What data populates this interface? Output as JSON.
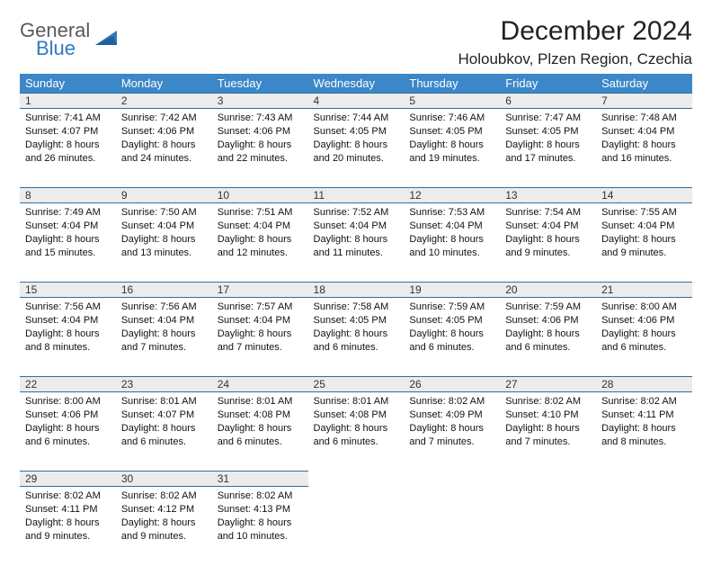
{
  "logo": {
    "text1": "General",
    "text2": "Blue",
    "brand_color": "#2f7bbf",
    "gray": "#5a5a5a"
  },
  "header": {
    "title": "December 2024",
    "location": "Holoubkov, Plzen Region, Czechia"
  },
  "colors": {
    "header_bg": "#3b87c8",
    "daynum_bg": "#ececec",
    "border": "#2f6ea8"
  },
  "weekdays": [
    "Sunday",
    "Monday",
    "Tuesday",
    "Wednesday",
    "Thursday",
    "Friday",
    "Saturday"
  ],
  "weeks": [
    [
      {
        "n": "1",
        "sr": "7:41 AM",
        "ss": "4:07 PM",
        "dl": "8 hours and 26 minutes."
      },
      {
        "n": "2",
        "sr": "7:42 AM",
        "ss": "4:06 PM",
        "dl": "8 hours and 24 minutes."
      },
      {
        "n": "3",
        "sr": "7:43 AM",
        "ss": "4:06 PM",
        "dl": "8 hours and 22 minutes."
      },
      {
        "n": "4",
        "sr": "7:44 AM",
        "ss": "4:05 PM",
        "dl": "8 hours and 20 minutes."
      },
      {
        "n": "5",
        "sr": "7:46 AM",
        "ss": "4:05 PM",
        "dl": "8 hours and 19 minutes."
      },
      {
        "n": "6",
        "sr": "7:47 AM",
        "ss": "4:05 PM",
        "dl": "8 hours and 17 minutes."
      },
      {
        "n": "7",
        "sr": "7:48 AM",
        "ss": "4:04 PM",
        "dl": "8 hours and 16 minutes."
      }
    ],
    [
      {
        "n": "8",
        "sr": "7:49 AM",
        "ss": "4:04 PM",
        "dl": "8 hours and 15 minutes."
      },
      {
        "n": "9",
        "sr": "7:50 AM",
        "ss": "4:04 PM",
        "dl": "8 hours and 13 minutes."
      },
      {
        "n": "10",
        "sr": "7:51 AM",
        "ss": "4:04 PM",
        "dl": "8 hours and 12 minutes."
      },
      {
        "n": "11",
        "sr": "7:52 AM",
        "ss": "4:04 PM",
        "dl": "8 hours and 11 minutes."
      },
      {
        "n": "12",
        "sr": "7:53 AM",
        "ss": "4:04 PM",
        "dl": "8 hours and 10 minutes."
      },
      {
        "n": "13",
        "sr": "7:54 AM",
        "ss": "4:04 PM",
        "dl": "8 hours and 9 minutes."
      },
      {
        "n": "14",
        "sr": "7:55 AM",
        "ss": "4:04 PM",
        "dl": "8 hours and 9 minutes."
      }
    ],
    [
      {
        "n": "15",
        "sr": "7:56 AM",
        "ss": "4:04 PM",
        "dl": "8 hours and 8 minutes."
      },
      {
        "n": "16",
        "sr": "7:56 AM",
        "ss": "4:04 PM",
        "dl": "8 hours and 7 minutes."
      },
      {
        "n": "17",
        "sr": "7:57 AM",
        "ss": "4:04 PM",
        "dl": "8 hours and 7 minutes."
      },
      {
        "n": "18",
        "sr": "7:58 AM",
        "ss": "4:05 PM",
        "dl": "8 hours and 6 minutes."
      },
      {
        "n": "19",
        "sr": "7:59 AM",
        "ss": "4:05 PM",
        "dl": "8 hours and 6 minutes."
      },
      {
        "n": "20",
        "sr": "7:59 AM",
        "ss": "4:06 PM",
        "dl": "8 hours and 6 minutes."
      },
      {
        "n": "21",
        "sr": "8:00 AM",
        "ss": "4:06 PM",
        "dl": "8 hours and 6 minutes."
      }
    ],
    [
      {
        "n": "22",
        "sr": "8:00 AM",
        "ss": "4:06 PM",
        "dl": "8 hours and 6 minutes."
      },
      {
        "n": "23",
        "sr": "8:01 AM",
        "ss": "4:07 PM",
        "dl": "8 hours and 6 minutes."
      },
      {
        "n": "24",
        "sr": "8:01 AM",
        "ss": "4:08 PM",
        "dl": "8 hours and 6 minutes."
      },
      {
        "n": "25",
        "sr": "8:01 AM",
        "ss": "4:08 PM",
        "dl": "8 hours and 6 minutes."
      },
      {
        "n": "26",
        "sr": "8:02 AM",
        "ss": "4:09 PM",
        "dl": "8 hours and 7 minutes."
      },
      {
        "n": "27",
        "sr": "8:02 AM",
        "ss": "4:10 PM",
        "dl": "8 hours and 7 minutes."
      },
      {
        "n": "28",
        "sr": "8:02 AM",
        "ss": "4:11 PM",
        "dl": "8 hours and 8 minutes."
      }
    ],
    [
      {
        "n": "29",
        "sr": "8:02 AM",
        "ss": "4:11 PM",
        "dl": "8 hours and 9 minutes."
      },
      {
        "n": "30",
        "sr": "8:02 AM",
        "ss": "4:12 PM",
        "dl": "8 hours and 9 minutes."
      },
      {
        "n": "31",
        "sr": "8:02 AM",
        "ss": "4:13 PM",
        "dl": "8 hours and 10 minutes."
      },
      null,
      null,
      null,
      null
    ]
  ],
  "labels": {
    "sunrise": "Sunrise: ",
    "sunset": "Sunset: ",
    "daylight": "Daylight: "
  }
}
